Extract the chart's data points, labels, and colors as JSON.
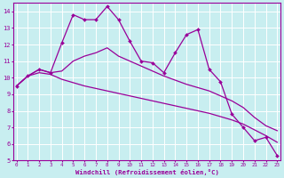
{
  "title": "Windchill (Refroidissement éolien,°C)",
  "background_color": "#c8eef0",
  "grid_color": "#ffffff",
  "line_color": "#990099",
  "x_labels": [
    "0",
    "1",
    "2",
    "3",
    "4",
    "5",
    "6",
    "7",
    "8",
    "9",
    "10",
    "11",
    "12",
    "13",
    "14",
    "15",
    "16",
    "17",
    "18",
    "19",
    "20",
    "21",
    "22",
    "23"
  ],
  "ylim": [
    5,
    14.5
  ],
  "yticks": [
    5,
    6,
    7,
    8,
    9,
    10,
    11,
    12,
    13,
    14
  ],
  "series1": [
    9.5,
    10.1,
    10.5,
    10.3,
    12.1,
    13.8,
    13.5,
    13.5,
    14.3,
    13.5,
    12.2,
    11.0,
    10.9,
    10.3,
    11.5,
    12.6,
    12.9,
    10.5,
    9.75,
    7.8,
    7.0,
    6.2,
    6.4,
    5.3
  ],
  "series2": [
    9.5,
    10.1,
    10.5,
    10.3,
    10.4,
    11.0,
    11.3,
    11.5,
    11.8,
    11.3,
    11.0,
    10.7,
    10.4,
    10.1,
    9.85,
    9.6,
    9.4,
    9.2,
    8.9,
    8.6,
    8.2,
    7.6,
    7.1,
    6.8
  ],
  "series3": [
    9.5,
    10.1,
    10.3,
    10.2,
    9.9,
    9.7,
    9.5,
    9.35,
    9.2,
    9.05,
    8.9,
    8.75,
    8.6,
    8.45,
    8.3,
    8.15,
    8.0,
    7.85,
    7.65,
    7.45,
    7.2,
    6.85,
    6.5,
    6.1
  ]
}
